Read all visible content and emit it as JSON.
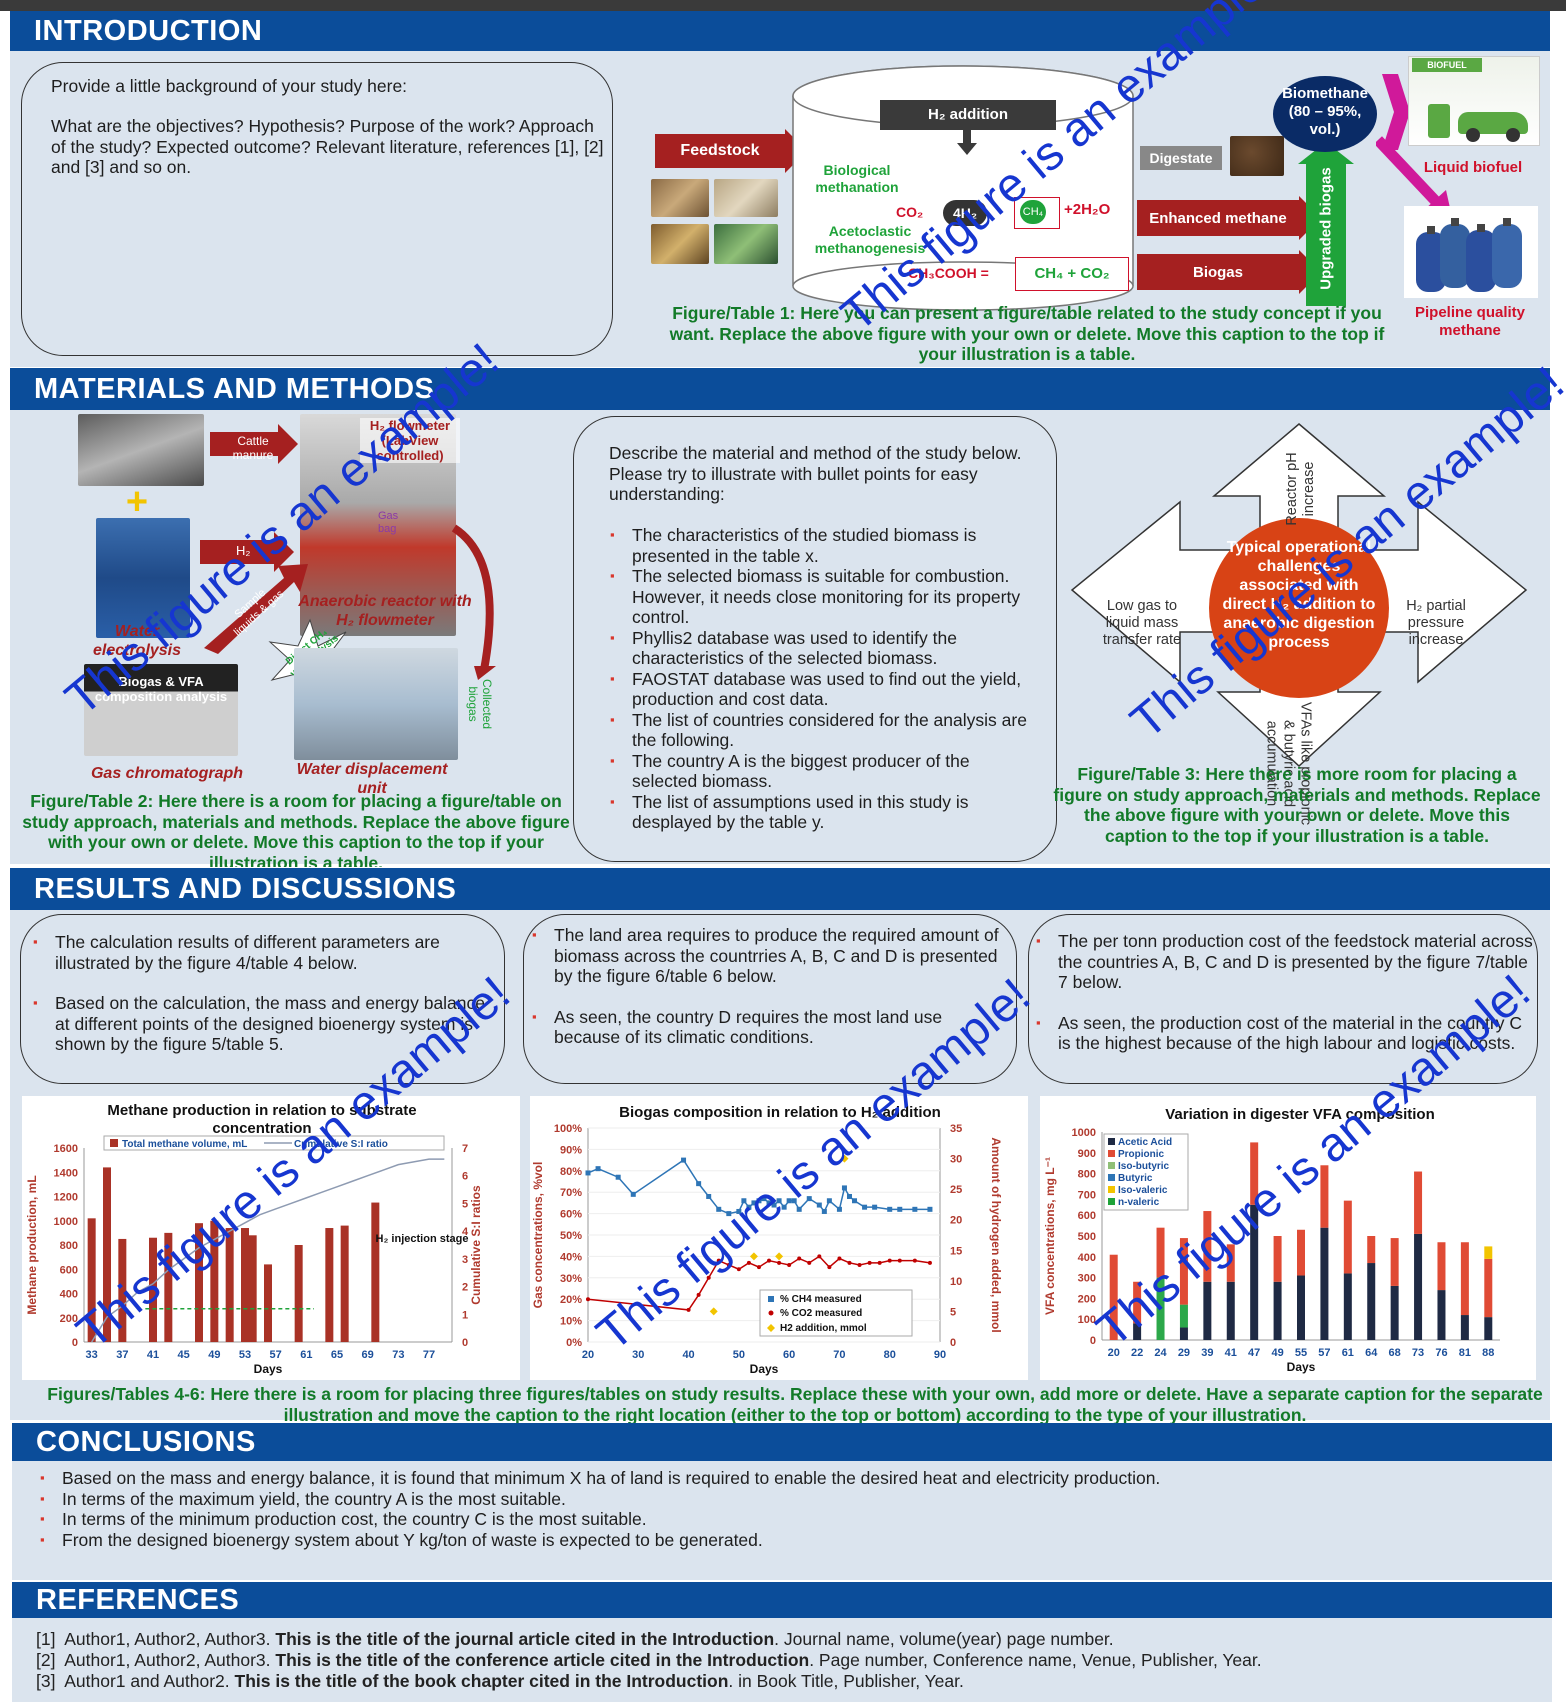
{
  "intro": {
    "title": "INTRODUCTION",
    "box_line1": "Provide a little background of your study here:",
    "box_line2": "What are the objectives? Hypothesis? Purpose of the work? Approach of the study? Expected outcome? Relevant literature, references [1], [2] and [3] and so on.",
    "fig1": {
      "feedstock": "Feedstock",
      "h2_addition": "H₂ addition",
      "bio_methanation": "Biological methanation",
      "acetoclastic": "Acetoclastic methanogenesis",
      "eq_co2": "CO₂",
      "eq_4h2": "4H₂",
      "eq_ch4": "CH₄",
      "eq_2h2o": "+2H₂O",
      "eq_ch3cooh": "CH₃COOH =",
      "eq_ch4co2": "CH₄ + CO₂",
      "digestate": "Digestate",
      "enhanced_methane": "Enhanced methane",
      "biogas": "Biogas",
      "upgraded_biogas": "Upgraded biogas",
      "biomethane": "Biomethane (80 – 95%, vol.)",
      "biofuel_sign": "BIOFUEL",
      "liquid_biofuel": "Liquid biofuel",
      "pipeline_quality": "Pipeline quality methane",
      "caption": "Figure/Table 1: Here you can present a figure/table related to the study concept if you want. Replace the above figure with your own or delete. Move this caption to the top if your illustration is a table."
    }
  },
  "methods": {
    "title": "MATERIALS AND METHODS",
    "fig2": {
      "cattle_manure": "Cattle manure",
      "h2_flowmeter": "H₂ flowmeter (LabView controlled)",
      "gas_bag": "Gas bag",
      "h2": "H₂",
      "anaerobic_reactor": "Anaerobic reactor with H₂ flowmeter",
      "water_electrolysis": "Water electrolysis",
      "sample": "Sample liquids & gas",
      "direct_ch4": "Direct CH₄ vol. analysis",
      "collected_biogas": "Collected biogas",
      "biogas_vfa": "Biogas & VFA composition analysis",
      "gas_chromatograph": "Gas chromatograph",
      "water_displacement": "Water displacement unit",
      "caption": "Figure/Table 2: Here there is a room for placing a figure/table on study approach, materials and methods. Replace the above figure with your own or delete. Move this caption to the top if your illustration is a table."
    },
    "intro_text": "Describe the material and method of the study below. Please try to illustrate with bullet points for easy understanding:",
    "bullets": [
      "The characteristics of the studied biomass is presented in the table x.",
      "The selected biomass is suitable for combustion. However, it needs close monitoring for its property control.",
      "Phyllis2 database was used to identify the characteristics of the selected biomass.",
      "FAOSTAT database was used to find out the yield, production and cost data.",
      "The list of countries considered for the analysis are the following.",
      "The country A is the biggest producer of the selected biomass.",
      "The list of assumptions used in this study is desplayed by the table y."
    ],
    "fig3": {
      "center": "Typical operational challenges associated with direct H₂ addition to anaerobic digestion process",
      "top": "Reactor pH increase",
      "left": "Low gas to liquid mass transfer rate",
      "right": "H₂ partial pressure increase",
      "bottom": "VFAs like propionic & butyric acid accumulation",
      "caption": "Figure/Table 3: Here there is more room for placing a figure on study approach, materials and methods. Replace the above figure with your own or delete. Move this caption to the top if your illustration is a table."
    }
  },
  "results": {
    "title": "RESULTS AND DISCUSSIONS",
    "box1": [
      "The calculation results of different parameters are illustrated by the figure 4/table 4 below.",
      "Based on the calculation, the mass and energy balance at different points of the designed bioenergy system is shown by the figure 5/table 5."
    ],
    "box2": [
      "The land area requires to produce the required amount of biomass across the countrries A, B, C and D is presented by the figure 6/table 6 below.",
      "As seen, the country D requires the most land use because of its climatic conditions."
    ],
    "box3": [
      "The per tonn production cost of the feedstock material across the countries A, B, C and D is presented by the figure 7/table 7 below.",
      "As seen, the production cost of the material in the country C is the highest because of the high labour and logistic costs."
    ],
    "caption": "Figures/Tables 4-6: Here there is a room for placing three figures/tables on study results. Replace these with your own, add more or delete. Have a separate caption for the separate illustration and move the caption to the right location (either to the top or bottom) according to the type of your illustration."
  },
  "watermark": "This figure is an example!",
  "chart_data": [
    {
      "type": "bar",
      "title": "Methane production in relation to substrate concentration",
      "xlabel": "Days",
      "ylabel": "Methane production, mL",
      "y2label": "Cumulative S:I ratios",
      "legend": [
        "Total methane volume, mL",
        "Cumulative S:I ratio"
      ],
      "annotation": "H₂ injection stage",
      "x_ticks": [
        "33",
        "37",
        "41",
        "45",
        "49",
        "53",
        "57",
        "61",
        "65",
        "69",
        "73",
        "77"
      ],
      "y_ticks": [
        "0",
        "200",
        "400",
        "600",
        "800",
        "1000",
        "1200",
        "1400",
        "1600"
      ],
      "y2_ticks": [
        "0",
        "1",
        "2",
        "3",
        "4",
        "5",
        "6",
        "7"
      ],
      "ylim": [
        0,
        1600
      ],
      "y2lim": [
        0,
        7
      ],
      "xlim": [
        32,
        80
      ],
      "bars_x": [
        33,
        35,
        37,
        39,
        41,
        43,
        45,
        47,
        49,
        51,
        53,
        54,
        56,
        58,
        60,
        62,
        64,
        66,
        68,
        70
      ],
      "bars_y": [
        1020,
        1440,
        850,
        0,
        860,
        900,
        0,
        980,
        1000,
        940,
        940,
        880,
        640,
        0,
        800,
        0,
        940,
        960,
        0,
        1150
      ],
      "ratio_x": [
        33,
        35,
        37,
        39,
        41,
        43,
        45,
        47,
        49,
        51,
        53,
        55,
        57,
        59,
        61,
        63,
        65,
        67,
        69,
        71,
        73,
        75,
        77,
        79
      ],
      "ratio_y": [
        0,
        0.9,
        1.3,
        1.8,
        2.1,
        2.6,
        3.0,
        3.4,
        3.7,
        4.0,
        4.3,
        4.6,
        4.8,
        5.0,
        5.2,
        5.4,
        5.6,
        5.8,
        6.0,
        6.2,
        6.4,
        6.5,
        6.6,
        6.6
      ]
    },
    {
      "type": "line",
      "title": "Biogas composition in relation to H₂ addition",
      "xlabel": "Days",
      "ylabel": "Gas concentrations, %vol",
      "y2label": "Amount of hydrogen added, mmol",
      "legend": [
        "% CH4 measured",
        "% CO2 measured",
        "H2 addition, mmol"
      ],
      "x_ticks": [
        "20",
        "30",
        "40",
        "50",
        "60",
        "70",
        "80",
        "90"
      ],
      "y_ticks": [
        "0%",
        "10%",
        "20%",
        "30%",
        "40%",
        "50%",
        "60%",
        "70%",
        "80%",
        "90%",
        "100%"
      ],
      "y2_ticks": [
        "0",
        "5",
        "10",
        "15",
        "20",
        "25",
        "30",
        "35"
      ],
      "xlim": [
        20,
        90
      ],
      "ylim": [
        0,
        100
      ],
      "y2lim": [
        0,
        35
      ],
      "ch4_x": [
        20,
        22,
        26,
        29,
        39,
        42,
        44,
        46,
        48,
        50,
        51,
        52,
        53,
        54,
        55,
        56,
        57,
        58,
        59,
        60,
        61,
        62,
        64,
        66,
        67,
        68,
        70,
        71,
        72,
        73,
        75,
        77,
        80,
        82,
        85,
        88
      ],
      "ch4_y": [
        79,
        81,
        77,
        69,
        85,
        74,
        68,
        62,
        60,
        61,
        66,
        63,
        65,
        66,
        67,
        65,
        64,
        66,
        63,
        66,
        66,
        62,
        67,
        64,
        61,
        66,
        62,
        72,
        68,
        66,
        63,
        63,
        62,
        62,
        62,
        62
      ],
      "co2_x": [
        20,
        40,
        42,
        44,
        46,
        48,
        50,
        52,
        54,
        56,
        58,
        60,
        62,
        64,
        66,
        68,
        70,
        72,
        74,
        76,
        78,
        80,
        82,
        85,
        88
      ],
      "co2_y": [
        20,
        15,
        22,
        30,
        38,
        36,
        34,
        37,
        35,
        38,
        37,
        36,
        39,
        37,
        40,
        35,
        39,
        37,
        36,
        37,
        37,
        38,
        38,
        38,
        37
      ],
      "h2_x": [
        50,
        52,
        56,
        60,
        70,
        71,
        73
      ],
      "h2_y": [
        5,
        15,
        25,
        15,
        25,
        30,
        35
      ],
      "h2_x_pts": [
        45,
        53,
        58,
        71
      ],
      "h2_y_pts": [
        5,
        14,
        14,
        30
      ]
    },
    {
      "type": "bar",
      "title": "Variation in digester VFA composition",
      "xlabel": "Days",
      "ylabel": "VFA concentrations, mg L⁻¹",
      "legend": [
        "Acetic Acid",
        "Propionic",
        "Iso-butyric",
        "Butyric",
        "Iso-valeric",
        "n-valeric"
      ],
      "x_ticks": [
        "20",
        "22",
        "24",
        "29",
        "39",
        "41",
        "47",
        "49",
        "55",
        "57",
        "61",
        "64",
        "68",
        "73",
        "76",
        "81",
        "88"
      ],
      "y_ticks": [
        "0",
        "100",
        "200",
        "300",
        "400",
        "500",
        "600",
        "700",
        "800",
        "900",
        "1000"
      ],
      "ylim": [
        0,
        1000
      ],
      "acetic": [
        0,
        80,
        0,
        60,
        280,
        280,
        650,
        280,
        310,
        540,
        320,
        370,
        260,
        510,
        240,
        120,
        110
      ],
      "propionic": [
        410,
        200,
        240,
        320,
        340,
        180,
        300,
        220,
        220,
        300,
        350,
        130,
        230,
        300,
        230,
        350,
        280
      ],
      "isobutyric": [
        0,
        0,
        300,
        110,
        0,
        0,
        0,
        0,
        0,
        0,
        0,
        0,
        0,
        0,
        0,
        0,
        0
      ],
      "isovaleric": [
        0,
        0,
        0,
        0,
        0,
        0,
        0,
        0,
        0,
        0,
        0,
        0,
        0,
        0,
        0,
        0,
        60
      ]
    }
  ],
  "conclusions": {
    "title": "CONCLUSIONS",
    "items": [
      "Based on the mass and energy balance, it is found that minimum X ha of land is required to enable the desired heat and electricity production.",
      "In terms of the maximum yield, the country A is the most suitable.",
      "In terms of the minimum production cost, the country C is the most suitable.",
      "From the designed bioenergy system about Y kg/ton of waste is expected to be generated."
    ]
  },
  "references": {
    "title": "REFERENCES",
    "items": [
      {
        "num": "[1]",
        "authors": "Author1, Author2, Author3.",
        "title": "This is the title of the journal article cited in the Introduction",
        "rest": ". Journal name, volume(year) page number."
      },
      {
        "num": "[2]",
        "authors": "Author1, Author2, Author3.",
        "title": "This is the title of the conference article cited in the Introduction",
        "rest": ". Page number, Conference name, Venue, Publisher, Year."
      },
      {
        "num": "[3]",
        "authors": "Author1 and Author2.",
        "title": "This is the title of the book chapter cited in the Introduction",
        "rest": ". in Book Title, Publisher, Year."
      }
    ]
  }
}
